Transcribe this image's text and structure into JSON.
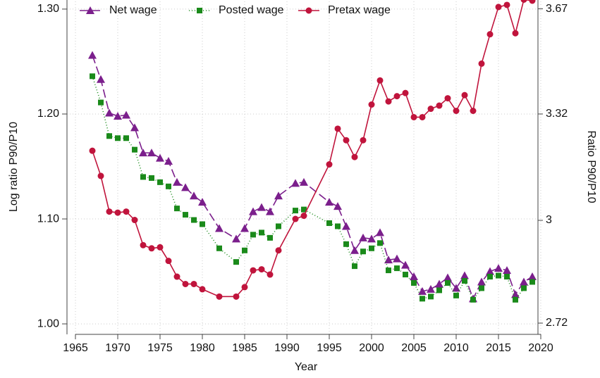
{
  "chart_data": {
    "type": "line",
    "x_label": "Year",
    "y_label": "Log ratio P90/P10",
    "y2_label": "Ratio P90/P10",
    "x": [
      1967,
      1968,
      1969,
      1970,
      1971,
      1972,
      1973,
      1974,
      1975,
      1976,
      1977,
      1978,
      1979,
      1980,
      1982,
      1984,
      1985,
      1986,
      1987,
      1988,
      1989,
      1991,
      1992,
      1995,
      1996,
      1997,
      1998,
      1999,
      2000,
      2001,
      2002,
      2003,
      2004,
      2005,
      2006,
      2007,
      2008,
      2009,
      2010,
      2011,
      2012,
      2013,
      2014,
      2015,
      2016,
      2017,
      2018,
      2019
    ],
    "series": [
      {
        "name": "Net wage",
        "color": "#7b1f8c",
        "marker": "triangle",
        "dash": "12 5",
        "values": [
          1.256,
          1.233,
          1.201,
          1.198,
          1.199,
          1.187,
          1.163,
          1.163,
          1.158,
          1.155,
          1.135,
          1.13,
          1.122,
          1.116,
          1.091,
          1.081,
          1.091,
          1.107,
          1.111,
          1.107,
          1.122,
          1.134,
          1.135,
          1.116,
          1.112,
          1.093,
          1.07,
          1.082,
          1.081,
          1.087,
          1.061,
          1.062,
          1.056,
          1.045,
          1.031,
          1.033,
          1.038,
          1.044,
          1.034,
          1.046,
          1.024,
          1.04,
          1.05,
          1.053,
          1.051,
          1.028,
          1.04,
          1.045
        ]
      },
      {
        "name": "Posted wage",
        "color": "#1a8a1a",
        "marker": "square",
        "dash": "1 3",
        "values": [
          1.236,
          1.211,
          1.179,
          1.177,
          1.177,
          1.166,
          1.14,
          1.139,
          1.135,
          1.131,
          1.11,
          1.104,
          1.099,
          1.095,
          1.072,
          1.059,
          1.07,
          1.085,
          1.087,
          1.082,
          1.093,
          1.108,
          1.109,
          1.096,
          1.093,
          1.076,
          1.055,
          1.069,
          1.072,
          1.077,
          1.051,
          1.053,
          1.047,
          1.039,
          1.024,
          1.026,
          1.032,
          1.039,
          1.027,
          1.041,
          1.023,
          1.034,
          1.045,
          1.046,
          1.045,
          1.023,
          1.034,
          1.04
        ]
      },
      {
        "name": "Pretax wage",
        "color": "#c0143c",
        "marker": "circle",
        "dash": "none",
        "values": [
          1.165,
          1.141,
          1.107,
          1.106,
          1.107,
          1.099,
          1.075,
          1.072,
          1.073,
          1.06,
          1.045,
          1.038,
          1.038,
          1.033,
          1.026,
          1.026,
          1.035,
          1.051,
          1.052,
          1.047,
          1.07,
          1.1,
          1.103,
          1.152,
          1.186,
          1.175,
          1.159,
          1.175,
          1.209,
          1.232,
          1.212,
          1.217,
          1.22,
          1.197,
          1.197,
          1.205,
          1.208,
          1.215,
          1.203,
          1.218,
          1.203,
          1.248,
          1.276,
          1.302,
          1.304,
          1.277,
          1.309,
          1.308
        ]
      }
    ],
    "xlim": [
      1964,
      2020
    ],
    "xticks": [
      1965,
      1970,
      1975,
      1980,
      1985,
      1990,
      1995,
      2000,
      2005,
      2010,
      2015,
      2020
    ],
    "ylim": [
      0.99,
      1.31
    ],
    "yticks": [
      {
        "value": 1.0,
        "label": "1.00"
      },
      {
        "value": 1.1,
        "label": "1.10"
      },
      {
        "value": 1.2,
        "label": "1.20"
      },
      {
        "value": 1.3,
        "label": "1.30"
      }
    ],
    "y2lim": [
      2.691,
      3.706
    ],
    "y2log": true,
    "y2ticks": [
      2.72,
      3,
      3.32,
      3.67
    ],
    "grid": true,
    "legend": "top"
  }
}
